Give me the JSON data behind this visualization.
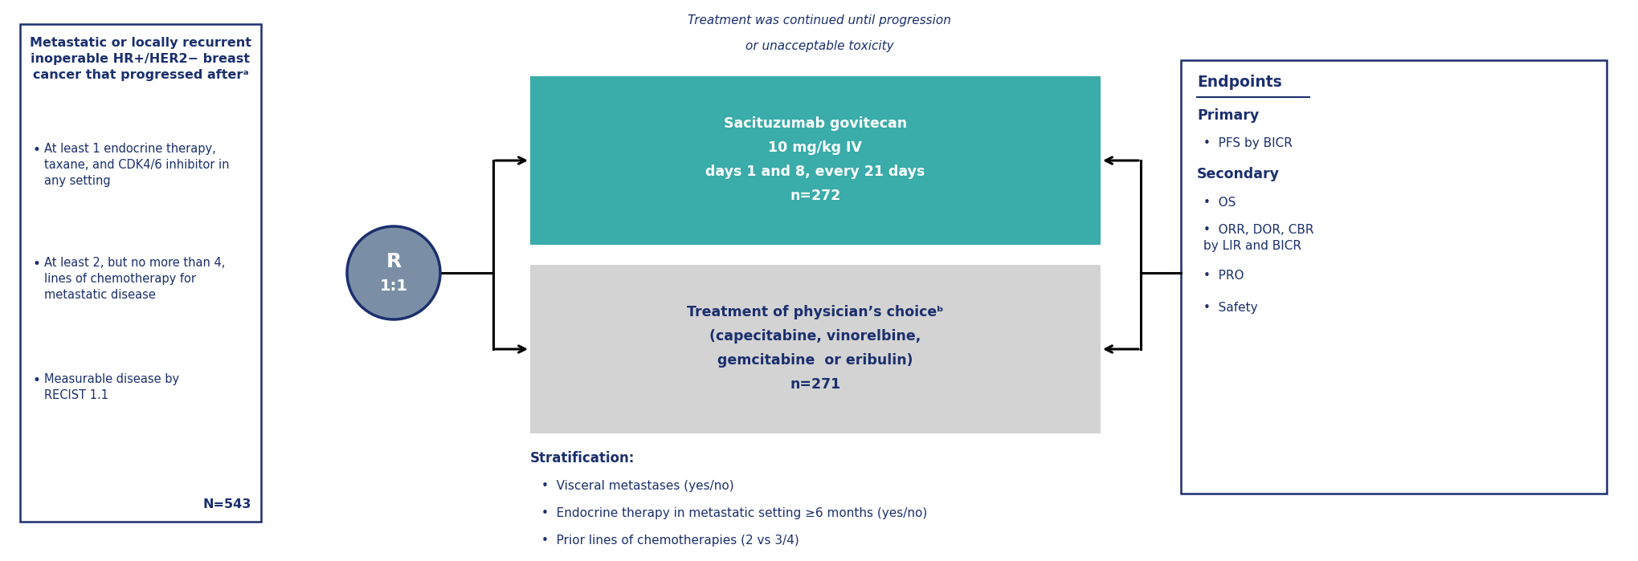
{
  "bg_color": "#ffffff",
  "dark_navy": "#1b2f6e",
  "teal_color": "#3aacaa",
  "gray_color": "#d3d3d3",
  "white": "#ffffff",
  "circle_gray": "#7a8fa6",
  "left_box_title": "Metastatic or locally recurrent\ninoperable HR+/HER2− breast\ncancer that progressed afterᵃ",
  "left_box_bullets": [
    "At least 1 endocrine therapy,\ntaxane, and CDK4/6 inhibitor in\nany setting",
    "At least 2, but no more than 4,\nlines of chemotherapy for\nmetastatic disease",
    "Measurable disease by\nRECIST 1.1"
  ],
  "left_box_footer": "N=543",
  "top_note_line1": "Treatment was continued until progression",
  "top_note_line2": "or unacceptable toxicity",
  "arm1_text_lines": [
    "Sacituzumab govitecan",
    "10 mg/kg IV",
    "days 1 and 8, every 21 days",
    "n=272"
  ],
  "arm2_text_lines": [
    "Treatment of physician’s choiceᵇ",
    "(capecitabine, vinorelbine,",
    "gemcitabine  or eribulin)",
    "n=271"
  ],
  "ep_title": "Endpoints",
  "ep_primary_label": "Primary",
  "ep_primary_bullets": [
    "PFS by BICR"
  ],
  "ep_secondary_label": "Secondary",
  "ep_secondary_bullets": [
    "OS",
    "ORR, DOR, CBR\nby LIR and BICR",
    "PRO",
    "Safety"
  ],
  "strat_title": "Stratification:",
  "strat_bullets": [
    "Visceral metastases (yes/no)",
    "Endocrine therapy in metastatic setting ≥6 months (yes/no)",
    "Prior lines of chemotherapies (2 vs 3/4)"
  ]
}
